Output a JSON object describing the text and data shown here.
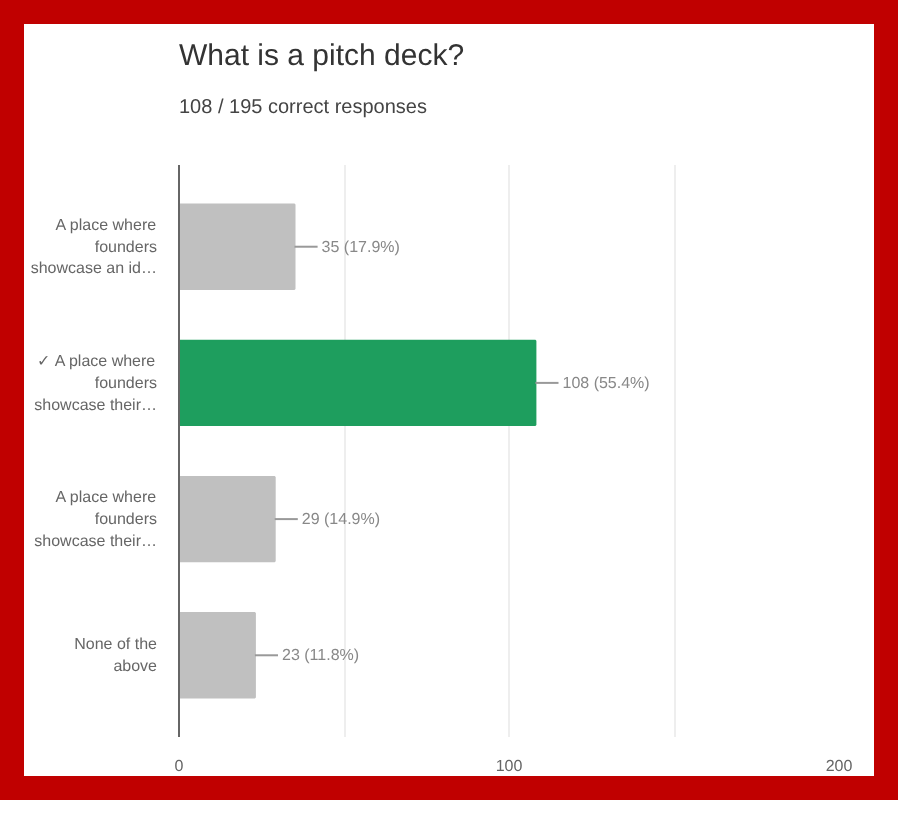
{
  "chart_data": {
    "type": "bar",
    "orientation": "horizontal",
    "title": "What is a pitch deck?",
    "subtitle": "108 / 195 correct responses",
    "categories": [
      "A place where\nfounders\nshowcase an id…",
      "✓ A place where\nfounders\nshowcase their…",
      "A place where\nfounders\nshowcase their…",
      "None of the\nabove"
    ],
    "values": [
      35,
      108,
      29,
      23
    ],
    "colors": [
      "#c0c0c0",
      "#1e9e5e",
      "#c0c0c0",
      "#c0c0c0"
    ],
    "value_labels": [
      "35 (17.9%)",
      "108 (55.4%)",
      "29 (14.9%)",
      "23 (11.8%)"
    ],
    "xlim": [
      0,
      200
    ],
    "xticks": [
      0,
      {
        "value": 50,
        "label": null
      },
      100,
      {
        "value": 150,
        "label": null
      },
      200
    ],
    "grid": "x"
  }
}
